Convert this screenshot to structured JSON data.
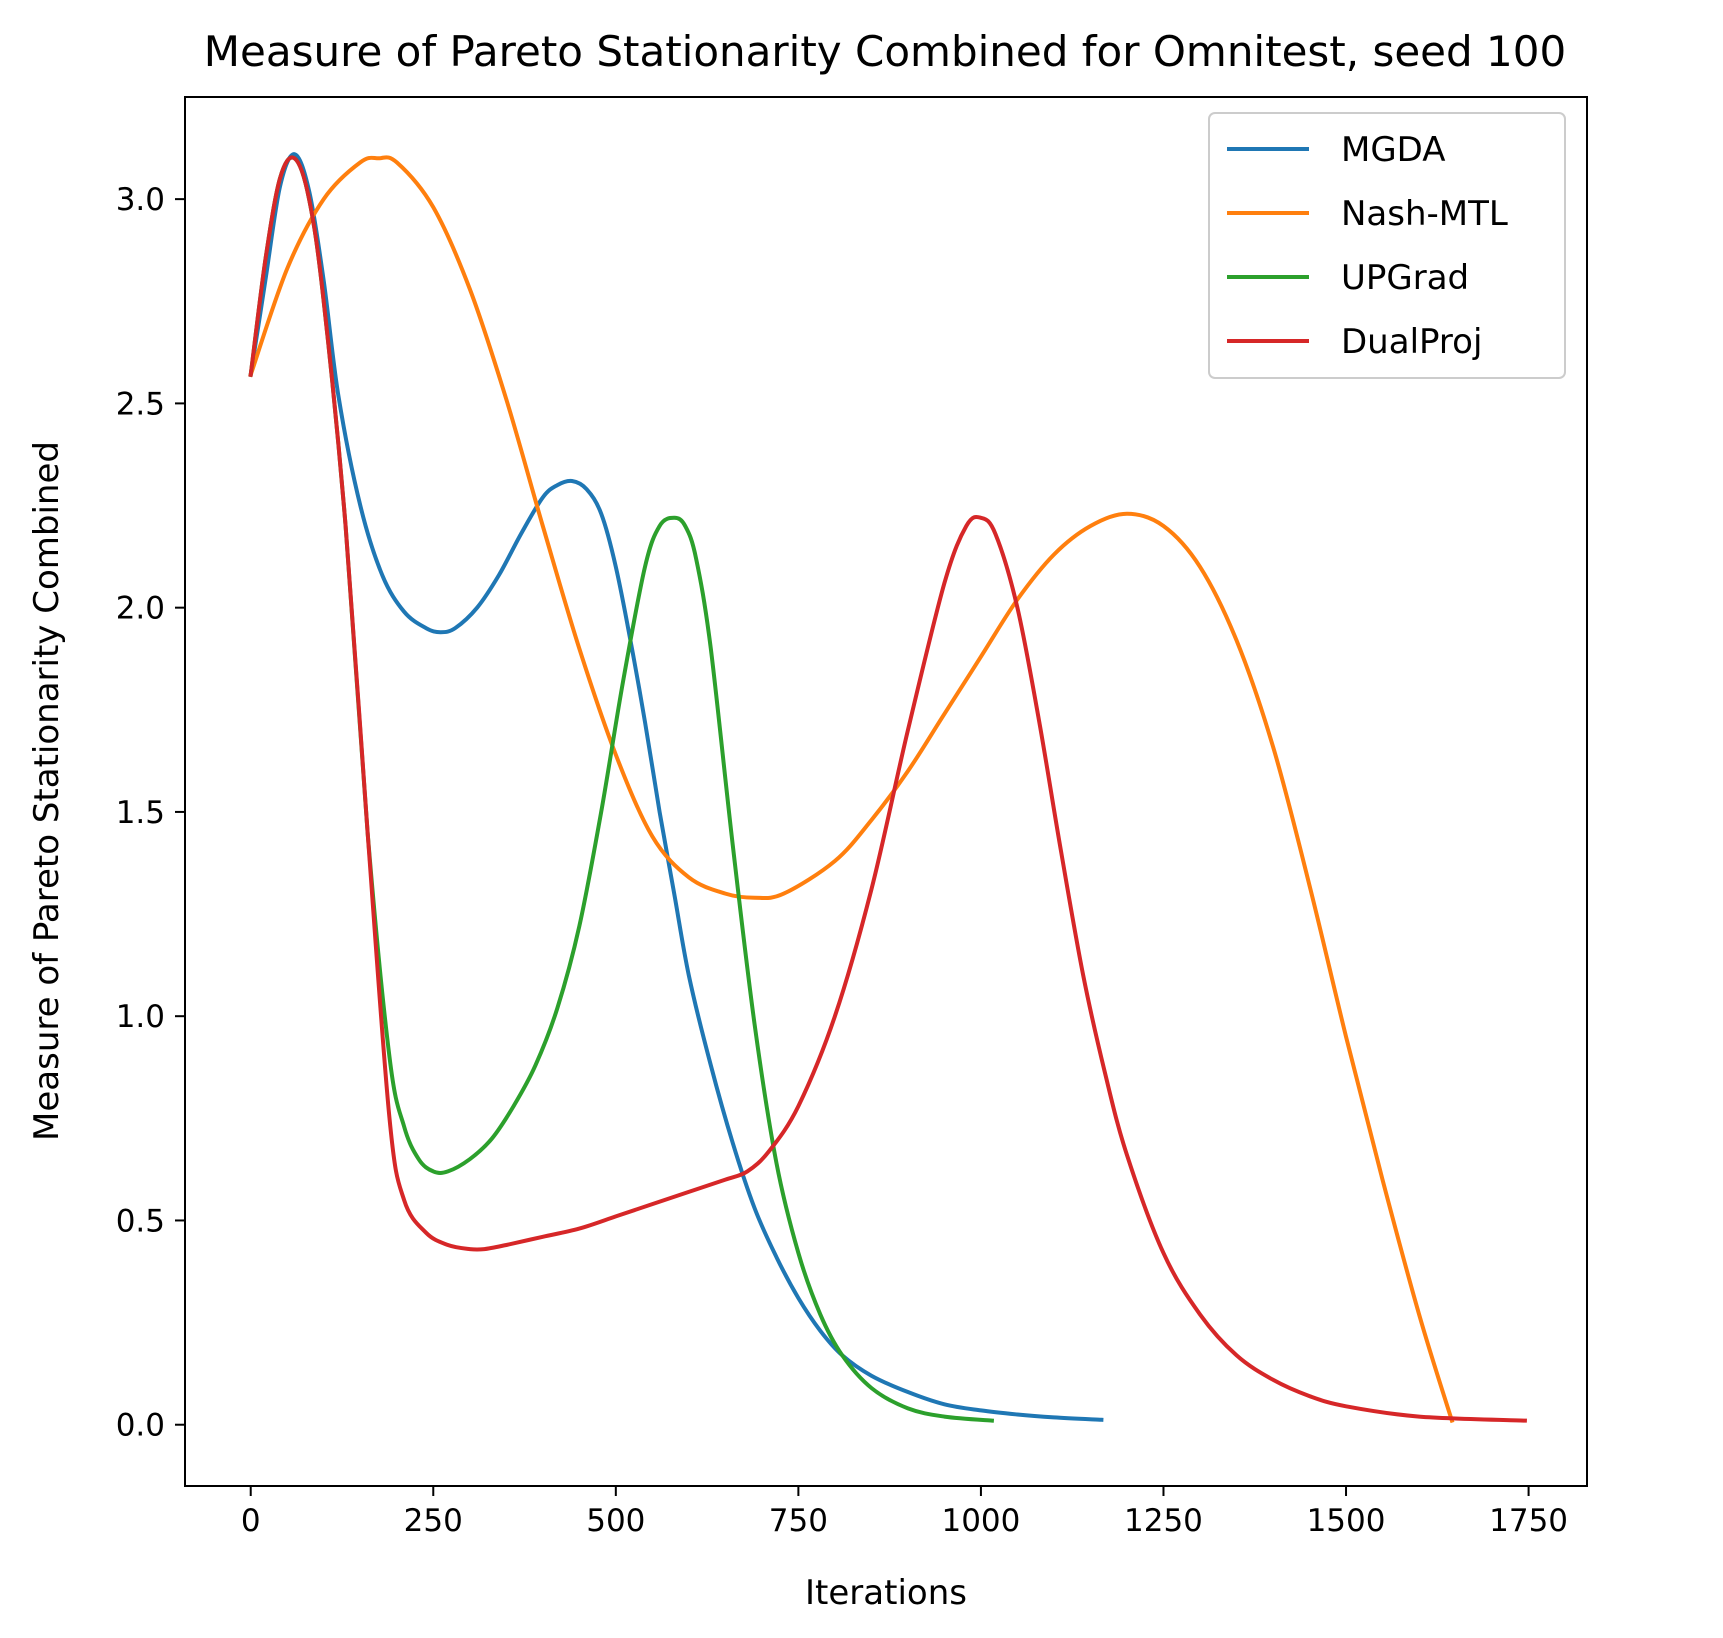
{
  "chart_data": {
    "type": "line",
    "title": "Measure of Pareto Stationarity Combined for Omnitest, seed 100",
    "xlabel": "Iterations",
    "ylabel": "Measure of Pareto Stationarity Combined",
    "xlim": [
      -90,
      1830
    ],
    "ylim": [
      -0.15,
      3.25
    ],
    "x_ticks": [
      0,
      250,
      500,
      750,
      1000,
      1250,
      1500,
      1750
    ],
    "x_tick_labels": [
      "0",
      "250",
      "500",
      "750",
      "1000",
      "1250",
      "1500",
      "1750"
    ],
    "y_ticks": [
      0.0,
      0.5,
      1.0,
      1.5,
      2.0,
      2.5,
      3.0
    ],
    "y_tick_labels": [
      "0.0",
      "0.5",
      "1.0",
      "1.5",
      "2.0",
      "2.5",
      "3.0"
    ],
    "grid": false,
    "legend_position": "top-right",
    "series": [
      {
        "name": "MGDA",
        "color": "#1f77b4",
        "x": [
          0,
          20,
          40,
          60,
          80,
          100,
          120,
          150,
          180,
          210,
          240,
          260,
          280,
          310,
          340,
          370,
          400,
          420,
          440,
          460,
          480,
          500,
          520,
          540,
          560,
          580,
          600,
          630,
          660,
          690,
          720,
          750,
          780,
          810,
          850,
          900,
          950,
          1000,
          1050,
          1100,
          1165
        ],
        "y": [
          2.57,
          2.8,
          3.03,
          3.11,
          3.02,
          2.8,
          2.52,
          2.25,
          2.08,
          1.99,
          1.95,
          1.94,
          1.95,
          2.0,
          2.08,
          2.18,
          2.27,
          2.3,
          2.31,
          2.29,
          2.23,
          2.1,
          1.92,
          1.72,
          1.5,
          1.3,
          1.1,
          0.88,
          0.69,
          0.53,
          0.41,
          0.31,
          0.23,
          0.17,
          0.12,
          0.08,
          0.05,
          0.035,
          0.025,
          0.018,
          0.012
        ]
      },
      {
        "name": "Nash-MTL",
        "color": "#ff7f0e",
        "x": [
          0,
          50,
          100,
          150,
          175,
          200,
          250,
          300,
          350,
          400,
          450,
          500,
          550,
          600,
          650,
          690,
          730,
          800,
          850,
          900,
          950,
          1000,
          1050,
          1100,
          1150,
          1200,
          1250,
          1300,
          1350,
          1400,
          1450,
          1500,
          1550,
          1600,
          1645
        ],
        "y": [
          2.57,
          2.83,
          3.0,
          3.09,
          3.1,
          3.09,
          2.98,
          2.78,
          2.51,
          2.2,
          1.9,
          1.64,
          1.44,
          1.34,
          1.3,
          1.29,
          1.3,
          1.38,
          1.48,
          1.6,
          1.74,
          1.88,
          2.02,
          2.13,
          2.2,
          2.23,
          2.2,
          2.1,
          1.92,
          1.66,
          1.32,
          0.95,
          0.6,
          0.27,
          0.01
        ]
      },
      {
        "name": "UPGrad",
        "color": "#2ca02c",
        "x": [
          0,
          20,
          40,
          60,
          80,
          100,
          130,
          160,
          190,
          210,
          230,
          250,
          270,
          300,
          330,
          360,
          390,
          420,
          450,
          480,
          510,
          540,
          560,
          580,
          595,
          610,
          630,
          660,
          690,
          720,
          750,
          780,
          810,
          850,
          900,
          950,
          1015
        ],
        "y": [
          2.57,
          2.85,
          3.05,
          3.1,
          3.0,
          2.75,
          2.2,
          1.45,
          0.9,
          0.73,
          0.65,
          0.62,
          0.62,
          0.65,
          0.7,
          0.78,
          0.88,
          1.02,
          1.22,
          1.5,
          1.82,
          2.1,
          2.2,
          2.22,
          2.2,
          2.12,
          1.9,
          1.42,
          0.98,
          0.64,
          0.42,
          0.27,
          0.17,
          0.09,
          0.04,
          0.02,
          0.01
        ]
      },
      {
        "name": "DualProj",
        "color": "#d62728",
        "x": [
          0,
          20,
          40,
          60,
          80,
          100,
          130,
          160,
          190,
          210,
          240,
          270,
          300,
          320,
          350,
          400,
          450,
          500,
          550,
          600,
          650,
          680,
          710,
          750,
          800,
          850,
          900,
          950,
          980,
          1000,
          1020,
          1050,
          1080,
          1110,
          1140,
          1170,
          1200,
          1250,
          1300,
          1350,
          1400,
          1450,
          1500,
          1600,
          1745
        ],
        "y": [
          2.57,
          2.85,
          3.05,
          3.1,
          3.0,
          2.75,
          2.2,
          1.45,
          0.75,
          0.55,
          0.47,
          0.44,
          0.43,
          0.43,
          0.44,
          0.46,
          0.48,
          0.51,
          0.54,
          0.57,
          0.6,
          0.62,
          0.67,
          0.78,
          1.0,
          1.31,
          1.7,
          2.06,
          2.2,
          2.22,
          2.18,
          2.0,
          1.72,
          1.4,
          1.1,
          0.86,
          0.66,
          0.42,
          0.27,
          0.17,
          0.11,
          0.07,
          0.045,
          0.02,
          0.01
        ]
      }
    ]
  }
}
